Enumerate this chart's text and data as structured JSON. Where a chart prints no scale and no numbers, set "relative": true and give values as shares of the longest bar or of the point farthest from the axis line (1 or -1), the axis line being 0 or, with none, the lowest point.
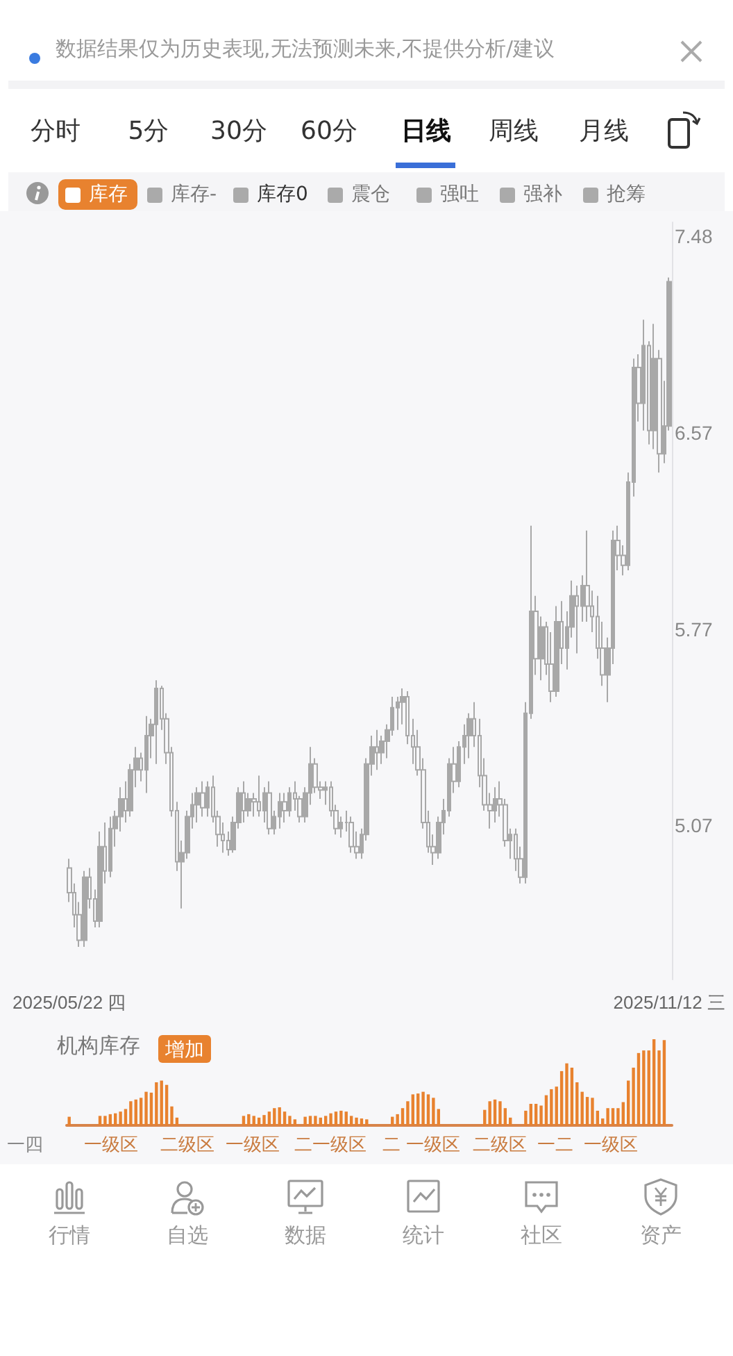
{
  "chart_data": [
    {
      "type": "candlestick",
      "color": "#a8a8a8",
      "log": true,
      "ylim": [
        4.58,
        7.55
      ],
      "yticks": [
        5.07,
        5.77,
        6.57,
        7.48
      ],
      "annotations": [
        "数据结果仅为历史表现,无法预测未来,不提供分析/建议",
        "分时",
        "5分",
        "30分",
        "60分",
        "日线",
        "周线",
        "月线",
        "库存",
        "库存-",
        "库存0",
        "震仓",
        "强吐",
        "强补",
        "抢筹"
      ],
      "categories": [
        "2025/05/22 四",
        null,
        null,
        null,
        null,
        null,
        null,
        null,
        null,
        null,
        null,
        null,
        null,
        null,
        null,
        null,
        null,
        null,
        null,
        null,
        null,
        null,
        null,
        null,
        null,
        null,
        null,
        null,
        null,
        null,
        null,
        null,
        null,
        null,
        null,
        null,
        null,
        null,
        null,
        null,
        null,
        null,
        null,
        null,
        null,
        null,
        null,
        null,
        null,
        null,
        null,
        null,
        null,
        null,
        null,
        null,
        null,
        null,
        null,
        null,
        null,
        null,
        null,
        null,
        null,
        null,
        null,
        null,
        null,
        null,
        null,
        null,
        null,
        null,
        null,
        null,
        null,
        null,
        null,
        null,
        null,
        null,
        null,
        null,
        null,
        null,
        null,
        null,
        null,
        null,
        null,
        null,
        null,
        null,
        null,
        null,
        null,
        null,
        null,
        null,
        null,
        null,
        null,
        null,
        null,
        null,
        null,
        null,
        null,
        null,
        null,
        null,
        null,
        null,
        null,
        null,
        null,
        "2025/11/12 三"
      ],
      "ohlc": [
        [
          4.93,
          4.96,
          4.82,
          4.85
        ],
        [
          4.85,
          4.88,
          4.74,
          4.78
        ],
        [
          4.78,
          4.82,
          4.68,
          4.7
        ],
        [
          4.7,
          4.92,
          4.68,
          4.9
        ],
        [
          4.9,
          4.93,
          4.8,
          4.83
        ],
        [
          4.83,
          4.86,
          4.74,
          4.76
        ],
        [
          4.76,
          5.05,
          4.74,
          5.0
        ],
        [
          5.0,
          5.08,
          4.88,
          4.92
        ],
        [
          4.92,
          5.1,
          4.9,
          5.06
        ],
        [
          5.06,
          5.12,
          5.0,
          5.1
        ],
        [
          5.1,
          5.2,
          5.05,
          5.16
        ],
        [
          5.16,
          5.22,
          5.08,
          5.12
        ],
        [
          5.12,
          5.28,
          5.1,
          5.26
        ],
        [
          5.26,
          5.34,
          5.2,
          5.3
        ],
        [
          5.3,
          5.32,
          5.22,
          5.26
        ],
        [
          5.26,
          5.45,
          5.18,
          5.38
        ],
        [
          5.38,
          5.44,
          5.3,
          5.42
        ],
        [
          5.42,
          5.58,
          5.28,
          5.55
        ],
        [
          5.55,
          5.56,
          5.4,
          5.44
        ],
        [
          5.44,
          5.46,
          5.28,
          5.32
        ],
        [
          5.32,
          5.34,
          5.1,
          5.12
        ],
        [
          5.12,
          5.15,
          4.92,
          4.95
        ],
        [
          4.95,
          5.02,
          4.8,
          4.98
        ],
        [
          4.98,
          5.12,
          4.96,
          5.1
        ],
        [
          5.1,
          5.18,
          5.06,
          5.14
        ],
        [
          5.14,
          5.2,
          5.08,
          5.18
        ],
        [
          5.18,
          5.22,
          5.1,
          5.13
        ],
        [
          5.13,
          5.22,
          5.1,
          5.2
        ],
        [
          5.2,
          5.24,
          5.08,
          5.1
        ],
        [
          5.1,
          5.12,
          5.0,
          5.04
        ],
        [
          5.04,
          5.08,
          4.98,
          5.02
        ],
        [
          5.02,
          5.05,
          4.97,
          4.99
        ],
        [
          4.99,
          5.1,
          4.98,
          5.08
        ],
        [
          5.08,
          5.2,
          5.06,
          5.18
        ],
        [
          5.18,
          5.22,
          5.08,
          5.12
        ],
        [
          5.12,
          5.18,
          5.1,
          5.16
        ],
        [
          5.16,
          5.18,
          5.1,
          5.15
        ],
        [
          5.15,
          5.24,
          5.1,
          5.12
        ],
        [
          5.12,
          5.2,
          5.08,
          5.18
        ],
        [
          5.18,
          5.22,
          5.04,
          5.06
        ],
        [
          5.06,
          5.12,
          5.04,
          5.1
        ],
        [
          5.1,
          5.18,
          5.06,
          5.15
        ],
        [
          5.15,
          5.18,
          5.08,
          5.12
        ],
        [
          5.12,
          5.2,
          5.1,
          5.18
        ],
        [
          5.18,
          5.22,
          5.12,
          5.16
        ],
        [
          5.16,
          5.17,
          5.08,
          5.1
        ],
        [
          5.1,
          5.2,
          5.08,
          5.18
        ],
        [
          5.18,
          5.34,
          5.14,
          5.28
        ],
        [
          5.28,
          5.3,
          5.18,
          5.2
        ],
        [
          5.2,
          5.22,
          5.16,
          5.19
        ],
        [
          5.19,
          5.22,
          5.14,
          5.2
        ],
        [
          5.2,
          5.22,
          5.1,
          5.12
        ],
        [
          5.12,
          5.14,
          5.04,
          5.06
        ],
        [
          5.06,
          5.1,
          5.03,
          5.08
        ],
        [
          5.08,
          5.12,
          5.05,
          5.08
        ],
        [
          5.08,
          5.1,
          4.98,
          5.0
        ],
        [
          5.0,
          5.05,
          4.96,
          4.98
        ],
        [
          4.98,
          5.06,
          4.96,
          5.04
        ],
        [
          5.04,
          5.3,
          5.02,
          5.28
        ],
        [
          5.28,
          5.38,
          5.24,
          5.34
        ],
        [
          5.34,
          5.4,
          5.26,
          5.32
        ],
        [
          5.32,
          5.38,
          5.28,
          5.36
        ],
        [
          5.36,
          5.42,
          5.3,
          5.4
        ],
        [
          5.4,
          5.52,
          5.38,
          5.48
        ],
        [
          5.48,
          5.52,
          5.4,
          5.5
        ],
        [
          5.5,
          5.55,
          5.42,
          5.52
        ],
        [
          5.52,
          5.54,
          5.35,
          5.38
        ],
        [
          5.38,
          5.44,
          5.28,
          5.34
        ],
        [
          5.34,
          5.4,
          5.24,
          5.26
        ],
        [
          5.26,
          5.3,
          5.06,
          5.08
        ],
        [
          5.08,
          5.12,
          4.98,
          5.0
        ],
        [
          5.0,
          5.04,
          4.94,
          4.98
        ],
        [
          4.98,
          5.1,
          4.96,
          5.08
        ],
        [
          5.08,
          5.16,
          5.04,
          5.12
        ],
        [
          5.12,
          5.3,
          5.1,
          5.28
        ],
        [
          5.28,
          5.34,
          5.18,
          5.22
        ],
        [
          5.22,
          5.36,
          5.2,
          5.34
        ],
        [
          5.34,
          5.42,
          5.28,
          5.38
        ],
        [
          5.38,
          5.46,
          5.3,
          5.44
        ],
        [
          5.44,
          5.5,
          5.34,
          5.38
        ],
        [
          5.38,
          5.44,
          5.2,
          5.24
        ],
        [
          5.24,
          5.3,
          5.12,
          5.14
        ],
        [
          5.14,
          5.18,
          5.06,
          5.12
        ],
        [
          5.12,
          5.2,
          5.08,
          5.16
        ],
        [
          5.16,
          5.22,
          5.1,
          5.14
        ],
        [
          5.14,
          5.16,
          5.0,
          5.02
        ],
        [
          5.02,
          5.06,
          4.96,
          5.04
        ],
        [
          5.04,
          5.06,
          4.92,
          4.96
        ],
        [
          4.96,
          5.0,
          4.88,
          4.9
        ],
        [
          4.9,
          5.5,
          4.88,
          5.46
        ],
        [
          5.46,
          6.18,
          5.44,
          5.84
        ],
        [
          5.84,
          5.9,
          5.6,
          5.66
        ],
        [
          5.66,
          5.82,
          5.58,
          5.78
        ],
        [
          5.78,
          5.8,
          5.6,
          5.64
        ],
        [
          5.64,
          5.76,
          5.5,
          5.54
        ],
        [
          5.54,
          5.86,
          5.52,
          5.8
        ],
        [
          5.8,
          5.88,
          5.64,
          5.7
        ],
        [
          5.7,
          5.84,
          5.62,
          5.78
        ],
        [
          5.78,
          5.96,
          5.74,
          5.9
        ],
        [
          5.9,
          5.94,
          5.68,
          5.86
        ],
        [
          5.86,
          5.98,
          5.8,
          5.94
        ],
        [
          5.94,
          6.16,
          5.8,
          5.86
        ],
        [
          5.86,
          5.92,
          5.76,
          5.82
        ],
        [
          5.82,
          5.9,
          5.66,
          5.7
        ],
        [
          5.7,
          5.8,
          5.56,
          5.6
        ],
        [
          5.6,
          5.74,
          5.5,
          5.7
        ],
        [
          5.7,
          6.16,
          5.64,
          6.12
        ],
        [
          6.12,
          6.18,
          6.0,
          6.06
        ],
        [
          6.06,
          6.1,
          5.98,
          6.02
        ],
        [
          6.02,
          6.4,
          6.0,
          6.36
        ],
        [
          6.36,
          6.9,
          6.3,
          6.86
        ],
        [
          6.86,
          6.92,
          6.62,
          6.7
        ],
        [
          6.7,
          7.08,
          6.58,
          6.96
        ],
        [
          6.96,
          6.98,
          6.52,
          6.58
        ],
        [
          6.58,
          7.06,
          6.5,
          6.9
        ],
        [
          6.9,
          6.94,
          6.4,
          6.48
        ],
        [
          6.48,
          6.8,
          6.44,
          6.6
        ],
        [
          6.6,
          7.28,
          6.58,
          7.26
        ]
      ]
    },
    {
      "type": "bar",
      "relative": true,
      "title": "机构库存",
      "legend": "top left",
      "annotations": [
        "一四",
        "一级区",
        "二级区",
        "一级区",
        "二一级区",
        "二",
        "一级区",
        "二级区",
        "一二",
        "一级区",
        "行情",
        "自选",
        "数据",
        "统计",
        "社区",
        "资产"
      ],
      "categories": [
        null,
        null,
        null,
        null,
        null,
        null,
        null,
        null,
        null,
        null,
        null,
        null,
        null,
        null,
        null,
        null,
        null,
        null,
        null,
        null,
        null,
        null,
        null,
        null,
        null,
        null,
        null,
        null,
        null,
        null,
        null,
        null,
        null,
        null,
        null,
        null,
        null,
        null,
        null,
        null,
        null,
        null,
        null,
        null,
        null,
        null,
        null,
        null,
        null,
        null,
        null,
        null,
        null,
        null,
        null,
        null,
        null,
        null,
        null,
        null,
        null,
        null,
        null,
        null,
        null,
        null,
        null,
        null,
        null,
        null,
        null,
        null,
        null,
        null,
        null,
        null,
        null,
        null,
        null,
        null,
        null,
        null,
        null,
        null,
        null,
        null,
        null,
        null,
        null,
        null,
        null,
        null,
        null,
        null,
        null,
        null,
        null,
        null,
        null,
        null,
        null,
        null,
        null,
        null,
        null,
        null,
        null,
        null,
        null,
        null,
        null,
        null,
        null,
        null,
        null,
        null,
        null,
        null
      ],
      "series": [
        {
          "name": "增加",
          "color": "#e8822f",
          "values": [
            0.1,
            null,
            null,
            null,
            null,
            null,
            0.11,
            0.11,
            0.13,
            0.14,
            0.16,
            0.19,
            0.28,
            0.3,
            0.32,
            0.39,
            0.38,
            0.5,
            0.52,
            0.47,
            0.22,
            0.09,
            null,
            null,
            null,
            null,
            null,
            null,
            null,
            null,
            null,
            null,
            null,
            null,
            0.11,
            0.13,
            0.11,
            0.09,
            0.12,
            0.16,
            0.2,
            0.21,
            0.16,
            0.11,
            0.07,
            null,
            0.1,
            0.11,
            0.11,
            0.09,
            0.11,
            0.14,
            0.16,
            0.17,
            0.16,
            0.11,
            0.09,
            0.08,
            0.07,
            null,
            null,
            null,
            null,
            0.1,
            0.13,
            0.2,
            0.28,
            0.36,
            0.37,
            0.39,
            0.36,
            0.32,
            0.19,
            null,
            null,
            null,
            null,
            null,
            null,
            null,
            null,
            0.18,
            0.28,
            0.3,
            0.28,
            0.2,
            0.09,
            null,
            null,
            0.17,
            0.25,
            0.25,
            0.23,
            0.35,
            0.42,
            0.45,
            0.63,
            0.72,
            0.67,
            0.5,
            0.39,
            0.33,
            0.32,
            0.17,
            0.08,
            0.2,
            0.2,
            0.2,
            0.27,
            0.52,
            0.67,
            0.84,
            0.87,
            0.87,
            1,
            0.87,
            0.99,
            null
          ]
        }
      ]
    }
  ]
}
